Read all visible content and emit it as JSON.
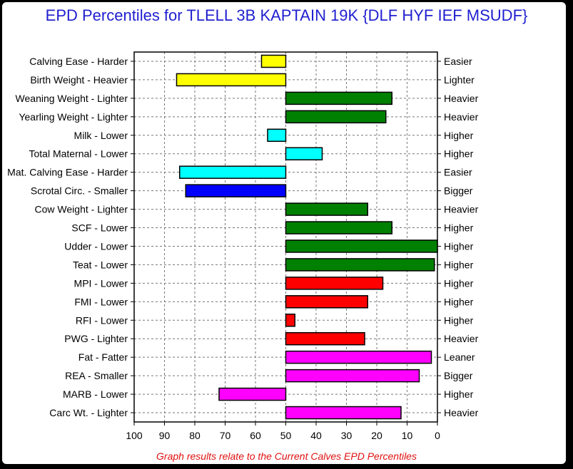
{
  "chart_data": {
    "type": "bar",
    "orientation": "horizontal",
    "title": "EPD Percentiles for TLELL 3B KAPTAIN 19K {DLF HYF IEF MSUDF}",
    "footnote": "Graph results relate to the Current Calves EPD Percentiles",
    "xlim": [
      100,
      0
    ],
    "xticks": [
      "100",
      "90",
      "80",
      "70",
      "60",
      "50",
      "40",
      "30",
      "20",
      "10",
      "0"
    ],
    "baseline": 50,
    "grid": true,
    "categories": [
      {
        "left": "Calving Ease - Harder",
        "right": "Easier",
        "value": 58,
        "color": "#ffff00"
      },
      {
        "left": "Birth Weight - Heavier",
        "right": "Lighter",
        "value": 86,
        "color": "#ffff00"
      },
      {
        "left": "Weaning Weight - Lighter",
        "right": "Heavier",
        "value": 15,
        "color": "#008000"
      },
      {
        "left": "Yearling Weight - Lighter",
        "right": "Heavier",
        "value": 17,
        "color": "#008000"
      },
      {
        "left": "Milk - Lower",
        "right": "Higher",
        "value": 56,
        "color": "#00ffff"
      },
      {
        "left": "Total Maternal - Lower",
        "right": "Higher",
        "value": 38,
        "color": "#00ffff"
      },
      {
        "left": "Mat. Calving Ease - Harder",
        "right": "Easier",
        "value": 85,
        "color": "#00ffff"
      },
      {
        "left": "Scrotal Circ. - Smaller",
        "right": "Bigger",
        "value": 83,
        "color": "#0000ff"
      },
      {
        "left": "Cow Weight - Lighter",
        "right": "Heavier",
        "value": 23,
        "color": "#008000"
      },
      {
        "left": "SCF - Lower",
        "right": "Higher",
        "value": 15,
        "color": "#008000"
      },
      {
        "left": "Udder - Lower",
        "right": "Higher",
        "value": 0,
        "color": "#008000"
      },
      {
        "left": "Teat - Lower",
        "right": "Higher",
        "value": 1,
        "color": "#008000"
      },
      {
        "left": "MPI - Lower",
        "right": "Higher",
        "value": 18,
        "color": "#ff0000"
      },
      {
        "left": "FMI - Lower",
        "right": "Higher",
        "value": 23,
        "color": "#ff0000"
      },
      {
        "left": "RFI - Lower",
        "right": "Higher",
        "value": 47,
        "color": "#ff0000"
      },
      {
        "left": "PWG - Lighter",
        "right": "Heavier",
        "value": 24,
        "color": "#ff0000"
      },
      {
        "left": "Fat - Fatter",
        "right": "Leaner",
        "value": 2,
        "color": "#ff00ff"
      },
      {
        "left": "REA - Smaller",
        "right": "Bigger",
        "value": 6,
        "color": "#ff00ff"
      },
      {
        "left": "MARB - Lower",
        "right": "Higher",
        "value": 72,
        "color": "#ff00ff"
      },
      {
        "left": "Carc Wt. - Lighter",
        "right": "Heavier",
        "value": 12,
        "color": "#ff00ff"
      }
    ]
  }
}
